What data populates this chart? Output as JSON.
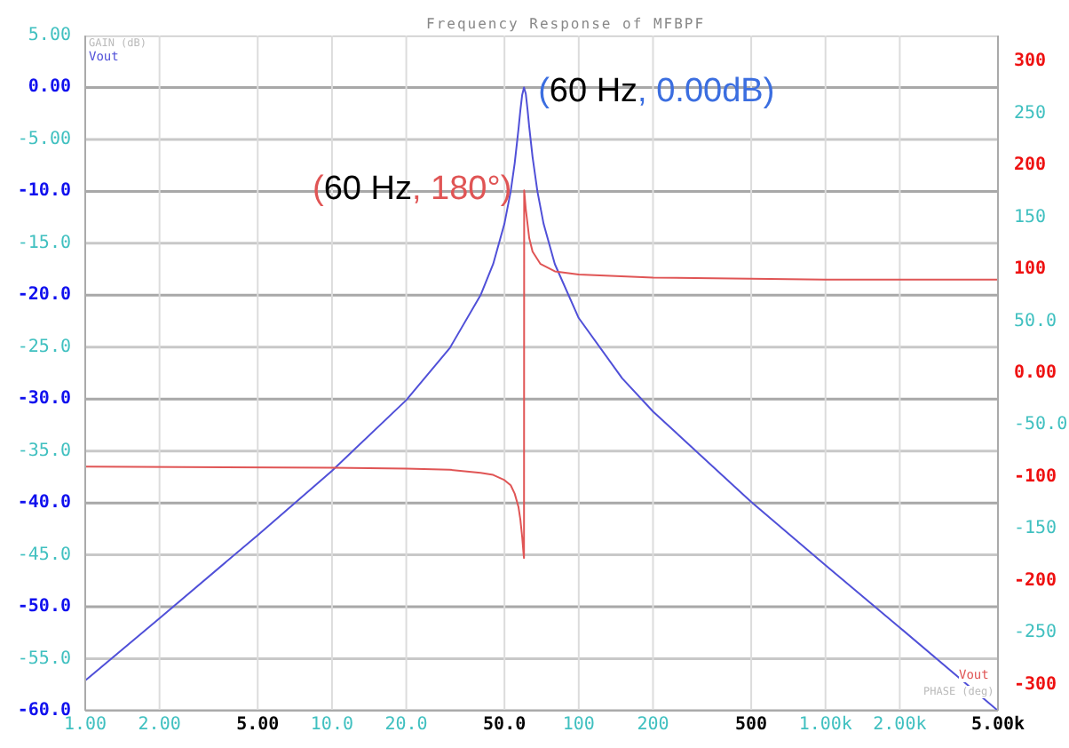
{
  "chart_data": {
    "type": "line",
    "title": "Frequency Response of MFBPF",
    "ylabel": "GAIN (dB)",
    "y2label": "PHASE (deg)",
    "log": "x",
    "grid": true,
    "legend": false,
    "marker": "none",
    "line_style": "solid",
    "xlim": [
      1,
      5000
    ],
    "xticks": [
      {
        "value": 1,
        "label": "1.00"
      },
      {
        "value": 2,
        "label": "2.00"
      },
      {
        "value": 5,
        "label": "5.00"
      },
      {
        "value": 10,
        "label": "10.0"
      },
      {
        "value": 20,
        "label": "20.0"
      },
      {
        "value": 50,
        "label": "50.0"
      },
      {
        "value": 100,
        "label": "100"
      },
      {
        "value": 200,
        "label": "200"
      },
      {
        "value": 500,
        "label": "500"
      },
      {
        "value": 1000,
        "label": "1.00k"
      },
      {
        "value": 2000,
        "label": "2.00k"
      },
      {
        "value": 5000,
        "label": "5.00k"
      }
    ],
    "ylim": [
      -60,
      5
    ],
    "yticks": [
      {
        "value": 5,
        "label": "5.00"
      },
      {
        "value": 0,
        "label": "0.00"
      },
      {
        "value": -5,
        "label": "-5.00"
      },
      {
        "value": -10,
        "label": "-10.0"
      },
      {
        "value": -15,
        "label": "-15.0"
      },
      {
        "value": -20,
        "label": "-20.0"
      },
      {
        "value": -25,
        "label": "-25.0"
      },
      {
        "value": -30,
        "label": "-30.0"
      },
      {
        "value": -35,
        "label": "-35.0"
      },
      {
        "value": -40,
        "label": "-40.0"
      },
      {
        "value": -45,
        "label": "-45.0"
      },
      {
        "value": -50,
        "label": "-50.0"
      },
      {
        "value": -55,
        "label": "-55.0"
      },
      {
        "value": -60,
        "label": "-60.0"
      }
    ],
    "y2lim": [
      -325,
      325
    ],
    "y2ticks": [
      {
        "value": 300,
        "label": "300"
      },
      {
        "value": 250,
        "label": "250"
      },
      {
        "value": 200,
        "label": "200"
      },
      {
        "value": 150,
        "label": "150"
      },
      {
        "value": 100,
        "label": "100"
      },
      {
        "value": 50,
        "label": "50.0"
      },
      {
        "value": 0,
        "label": "0.00"
      },
      {
        "value": -50,
        "label": "-50.0"
      },
      {
        "value": -100,
        "label": "-100"
      },
      {
        "value": -150,
        "label": "-150"
      },
      {
        "value": -200,
        "label": "-200"
      },
      {
        "value": -250,
        "label": "-250"
      },
      {
        "value": -300,
        "label": "-300"
      }
    ],
    "series": [
      {
        "name": "Vout",
        "color": "#5050d8",
        "x": [
          1,
          2,
          5,
          10,
          20,
          30,
          40,
          45,
          50,
          53,
          55,
          57,
          58,
          59,
          60,
          61,
          62,
          63,
          65,
          68,
          72,
          80,
          100,
          150,
          200,
          500,
          1000,
          2000,
          5000
        ],
        "values": [
          -57.1,
          -51.1,
          -43.1,
          -36.9,
          -30.1,
          -25.1,
          -20.0,
          -17.0,
          -13.1,
          -10.0,
          -7.3,
          -4.0,
          -2.2,
          -0.7,
          0,
          -0.6,
          -2.1,
          -3.8,
          -6.7,
          -10.0,
          -13.1,
          -17.0,
          -22.2,
          -28.0,
          -31.2,
          -39.9,
          -46.0,
          -52.0,
          -60.0
        ]
      },
      {
        "name": "Vout",
        "color": "#e05555",
        "axis": "y2",
        "x": [
          1,
          10,
          20,
          30,
          40,
          45,
          50,
          53,
          55,
          57,
          58,
          59,
          59.7,
          60,
          60.1,
          61,
          63,
          65,
          70,
          80,
          100,
          200,
          1000,
          5000
        ],
        "values": [
          -90,
          -91,
          -92,
          -93,
          -96,
          -98,
          -103,
          -108,
          -116,
          -129,
          -141,
          -158,
          -173,
          -178,
          176,
          158,
          130,
          117,
          105,
          98,
          95,
          92,
          90,
          90
        ]
      }
    ],
    "annotations": [
      {
        "text": "(60 Hz, 0.00dB)",
        "x": 60,
        "y": 0
      },
      "(60 Hz, 180°)"
    ]
  }
}
